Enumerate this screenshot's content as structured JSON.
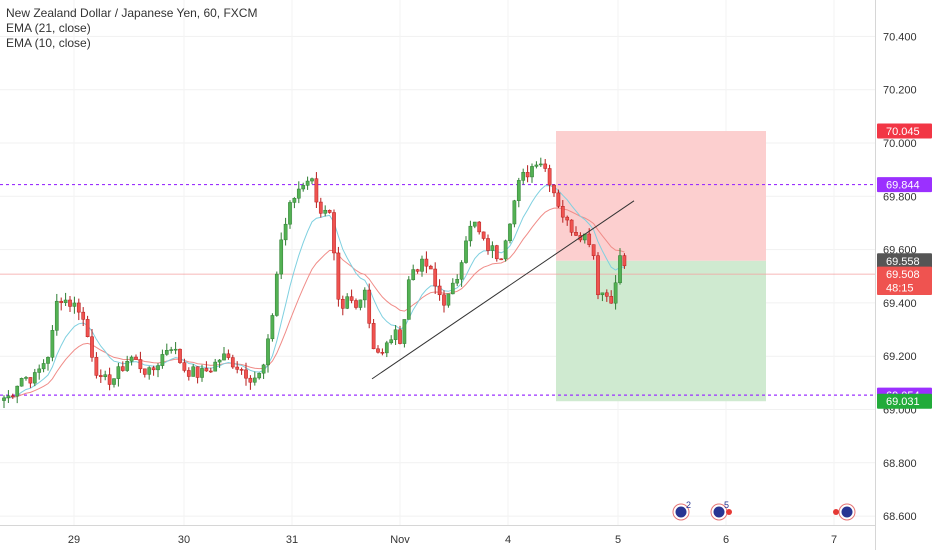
{
  "legend": {
    "title": "New Zealand Dollar / Japanese Yen, 60, FXCM",
    "ema21": "EMA (21, close)",
    "ema10": "EMA (10, close)"
  },
  "colors": {
    "up": "#26a69a",
    "up_fill": "#53b153",
    "down": "#ef5350",
    "ema21": "#f08c88",
    "ema10": "#7fd0e0",
    "level_line": "#9b30ff",
    "price_tag": "#555555",
    "stop_zone": "#fccfcf",
    "target_zone": "#cfead0"
  },
  "chart_data": {
    "type": "candlestick",
    "title": "New Zealand Dollar / Japanese Yen, 60, FXCM",
    "y_ticks": [
      "70.400",
      "70.200",
      "70.000",
      "69.800",
      "69.600",
      "69.400",
      "69.200",
      "69.000",
      "68.800",
      "68.600"
    ],
    "ylim": [
      68.54,
      70.63
    ],
    "x_ticks": [
      "29",
      "30",
      "31",
      "Nov",
      "4",
      "5",
      "6",
      "7"
    ],
    "horizontal_levels": [
      69.844,
      69.054
    ],
    "price_labels": [
      {
        "label": "70.045",
        "value": 70.045,
        "color": "#f23645"
      },
      {
        "label": "69.844",
        "value": 69.844,
        "color": "#9b30ff"
      },
      {
        "label": "69.558",
        "value": 69.558,
        "color": "#555555"
      },
      {
        "label": "69.508",
        "value": 69.508,
        "color": "#ef5350"
      },
      {
        "label": "48:15",
        "value": 69.458,
        "color": "#ef5350"
      },
      {
        "label": "69.054",
        "value": 69.054,
        "color": "#9b30ff"
      },
      {
        "label": "69.031",
        "value": 69.031,
        "color": "#22ab3a"
      }
    ],
    "position": {
      "entry": 69.558,
      "stop": 70.045,
      "target": 69.031
    },
    "trendline": [
      69.115,
      69.783
    ],
    "events": [
      {
        "badge": "2"
      },
      {
        "badge": "5"
      },
      {
        "badge": ""
      }
    ]
  }
}
